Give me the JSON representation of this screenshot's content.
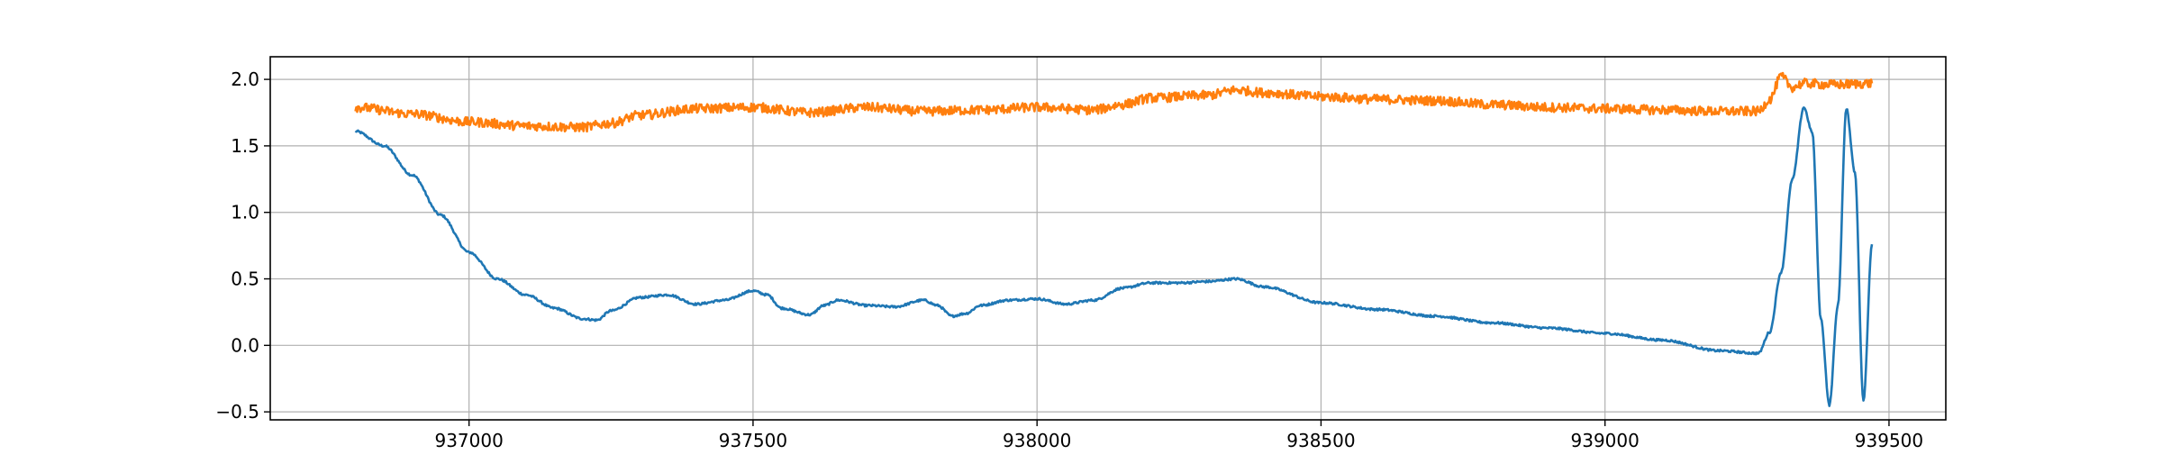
{
  "chart_data": {
    "type": "line",
    "title": "",
    "xlabel": "",
    "ylabel": "",
    "xlim": [
      936650,
      939600
    ],
    "ylim": [
      -0.56,
      2.17
    ],
    "grid": true,
    "x_ticks": [
      937000,
      937500,
      938000,
      938500,
      939000,
      939500
    ],
    "y_ticks": [
      -0.5,
      0.0,
      0.5,
      1.0,
      1.5,
      2.0
    ],
    "x_tick_labels": [
      "937000",
      "937500",
      "938000",
      "938500",
      "939000",
      "939500"
    ],
    "y_tick_labels": [
      "−0.5",
      "0.0",
      "0.5",
      "1.0",
      "1.5",
      "2.0"
    ],
    "series": [
      {
        "color": "#1f77b4",
        "noise": 0.008,
        "x": [
          936800,
          936850,
          936900,
          936950,
          937000,
          937050,
          937100,
          937150,
          937200,
          937225,
          937250,
          937300,
          937350,
          937400,
          937450,
          937500,
          937525,
          937550,
          937600,
          937625,
          937650,
          937700,
          937750,
          937800,
          937825,
          937850,
          937875,
          937900,
          937950,
          938000,
          938050,
          938100,
          938150,
          938200,
          938250,
          938300,
          938350,
          938400,
          938500,
          938600,
          938700,
          938800,
          938900,
          939000,
          939100,
          939200,
          939270,
          939290,
          939310,
          939330,
          939350,
          939365,
          939380,
          939395,
          939410,
          939425,
          939440,
          939455,
          939470
        ],
        "y": [
          1.61,
          1.5,
          1.28,
          0.98,
          0.7,
          0.5,
          0.38,
          0.28,
          0.2,
          0.19,
          0.26,
          0.36,
          0.38,
          0.31,
          0.34,
          0.41,
          0.38,
          0.28,
          0.23,
          0.3,
          0.34,
          0.3,
          0.29,
          0.34,
          0.3,
          0.22,
          0.24,
          0.3,
          0.34,
          0.35,
          0.31,
          0.34,
          0.43,
          0.47,
          0.47,
          0.48,
          0.5,
          0.44,
          0.32,
          0.27,
          0.22,
          0.17,
          0.13,
          0.09,
          0.04,
          -0.04,
          -0.06,
          0.1,
          0.55,
          1.25,
          1.79,
          1.6,
          0.2,
          -0.45,
          0.3,
          1.78,
          1.3,
          -0.42,
          0.76
        ]
      },
      {
        "color": "#ff7f0e",
        "noise": 0.035,
        "x": [
          936800,
          936900,
          937000,
          937100,
          937200,
          937250,
          937300,
          937400,
          937500,
          937600,
          937700,
          937800,
          937900,
          938000,
          938100,
          938150,
          938200,
          938300,
          938350,
          938400,
          938500,
          938600,
          938700,
          938800,
          938900,
          939000,
          939100,
          939200,
          939270,
          939290,
          939310,
          939330,
          939350,
          939400,
          939470
        ],
        "y": [
          1.79,
          1.74,
          1.68,
          1.65,
          1.64,
          1.67,
          1.73,
          1.78,
          1.79,
          1.75,
          1.79,
          1.76,
          1.77,
          1.79,
          1.77,
          1.81,
          1.86,
          1.88,
          1.92,
          1.9,
          1.87,
          1.85,
          1.84,
          1.81,
          1.79,
          1.78,
          1.77,
          1.76,
          1.76,
          1.85,
          2.02,
          1.94,
          1.97,
          1.96,
          1.97
        ]
      }
    ]
  }
}
